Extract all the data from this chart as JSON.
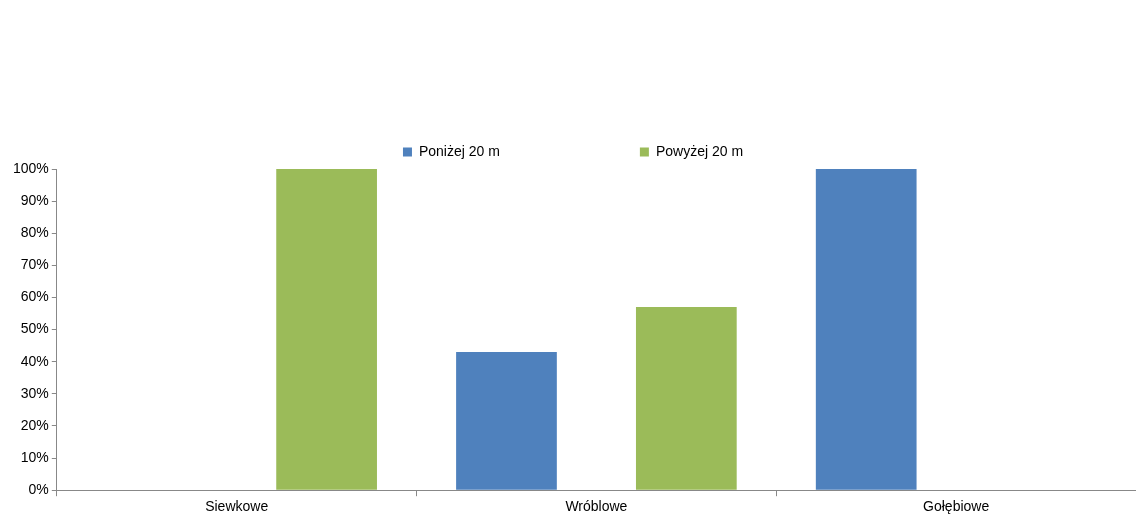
{
  "chart_data": {
    "type": "bar",
    "categories": [
      "Siewkowe",
      "Wróblowe",
      "Gołębiowe"
    ],
    "series": [
      {
        "name": "Poniżej 20 m",
        "color": "#4f81bd",
        "values": [
          0,
          43,
          100
        ]
      },
      {
        "name": "Powyżej 20 m",
        "color": "#9bbb59",
        "values": [
          100,
          57,
          0
        ]
      }
    ],
    "ylim": [
      0,
      100
    ],
    "yticks": [
      {
        "value": 0,
        "label": "0%"
      },
      {
        "value": 10,
        "label": "10%"
      },
      {
        "value": 20,
        "label": "20%"
      },
      {
        "value": 30,
        "label": "30%"
      },
      {
        "value": 40,
        "label": "40%"
      },
      {
        "value": 50,
        "label": "50%"
      },
      {
        "value": 60,
        "label": "60%"
      },
      {
        "value": 70,
        "label": "70%"
      },
      {
        "value": 80,
        "label": "80%"
      },
      {
        "value": 90,
        "label": "90%"
      },
      {
        "value": 100,
        "label": "100%"
      }
    ],
    "grid": false,
    "legend": "top"
  }
}
